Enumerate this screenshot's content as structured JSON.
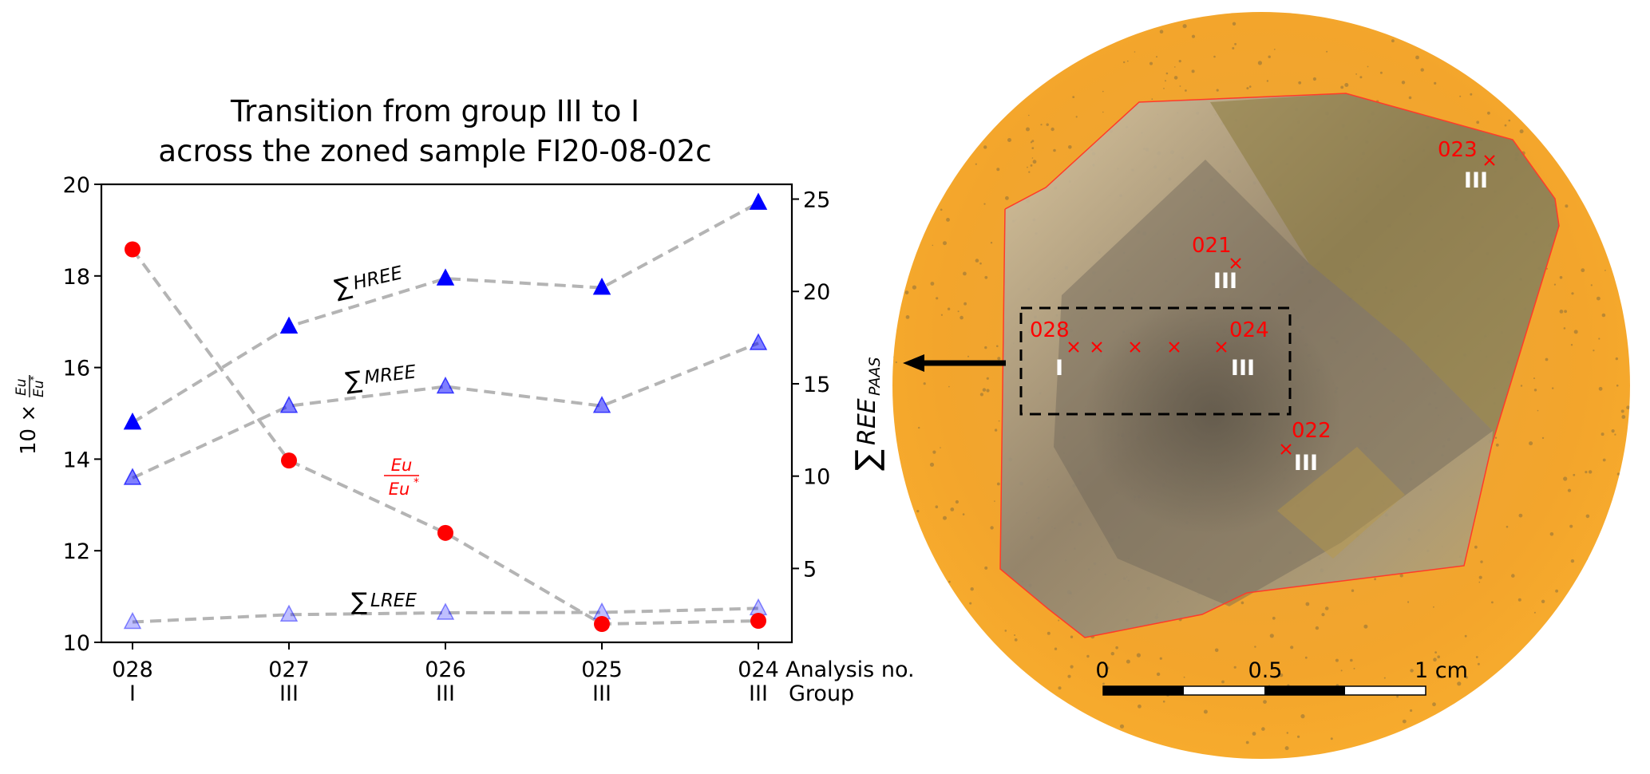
{
  "chart_data": {
    "type": "line",
    "title": [
      "Transition from group III to I",
      "across the zoned sample FI20-08-02c"
    ],
    "categories": [
      "028",
      "027",
      "026",
      "025",
      "024"
    ],
    "groups": [
      "I",
      "III",
      "III",
      "III",
      "III"
    ],
    "xlabel_analysis": "Analysis no.",
    "xlabel_group": "Group",
    "ylabel_left": "10 × Eu/Eu*",
    "ylabel_right": "∑REE_PAAS",
    "ylim_left": [
      10,
      20
    ],
    "yticks_left": [
      10,
      12,
      14,
      16,
      18,
      20
    ],
    "ylim_right": [
      1.0,
      25.8
    ],
    "yticks_right": [
      5,
      10,
      15,
      20,
      25
    ],
    "grid": false,
    "series": [
      {
        "name": "Eu/Eu*",
        "label": "Eu/Eu*",
        "axis": "left",
        "marker": "circle",
        "color": "#ff0000",
        "alpha": 1.0,
        "values": [
          18.58,
          13.97,
          12.39,
          10.4,
          10.47
        ]
      },
      {
        "name": "∑HREE",
        "label": "HREE",
        "axis": "right",
        "marker": "triangle",
        "color": "#0000ff",
        "alpha": 1.0,
        "values": [
          12.9,
          18.1,
          20.7,
          20.2,
          24.8
        ]
      },
      {
        "name": "∑MREE",
        "label": "MREE",
        "axis": "right",
        "marker": "triangle",
        "color": "#0000ff",
        "alpha": 0.5,
        "values": [
          9.9,
          13.8,
          14.85,
          13.8,
          17.2
        ]
      },
      {
        "name": "∑LREE",
        "label": "LREE",
        "axis": "right",
        "marker": "triangle",
        "color": "#0000ff",
        "alpha": 0.25,
        "values": [
          2.1,
          2.5,
          2.6,
          2.62,
          2.84
        ]
      }
    ],
    "line_style": {
      "color": "#b4b4b4",
      "dash": "dashed"
    }
  },
  "photo": {
    "description": "Zoned fluorite sample mount photograph",
    "analysis_points": [
      {
        "id": "028",
        "group": "I"
      },
      {
        "id": "027",
        "group": ""
      },
      {
        "id": "026",
        "group": ""
      },
      {
        "id": "025",
        "group": ""
      },
      {
        "id": "024",
        "group": "III"
      },
      {
        "id": "021",
        "group": "III"
      },
      {
        "id": "023",
        "group": "III"
      },
      {
        "id": "022",
        "group": "III"
      }
    ],
    "marker_color": "#ff0000",
    "scale_bar": {
      "labels": [
        "0",
        "0.5",
        "1 cm"
      ]
    },
    "mount_color": "#f4a62a",
    "outline_color": "#ff3a2a"
  }
}
